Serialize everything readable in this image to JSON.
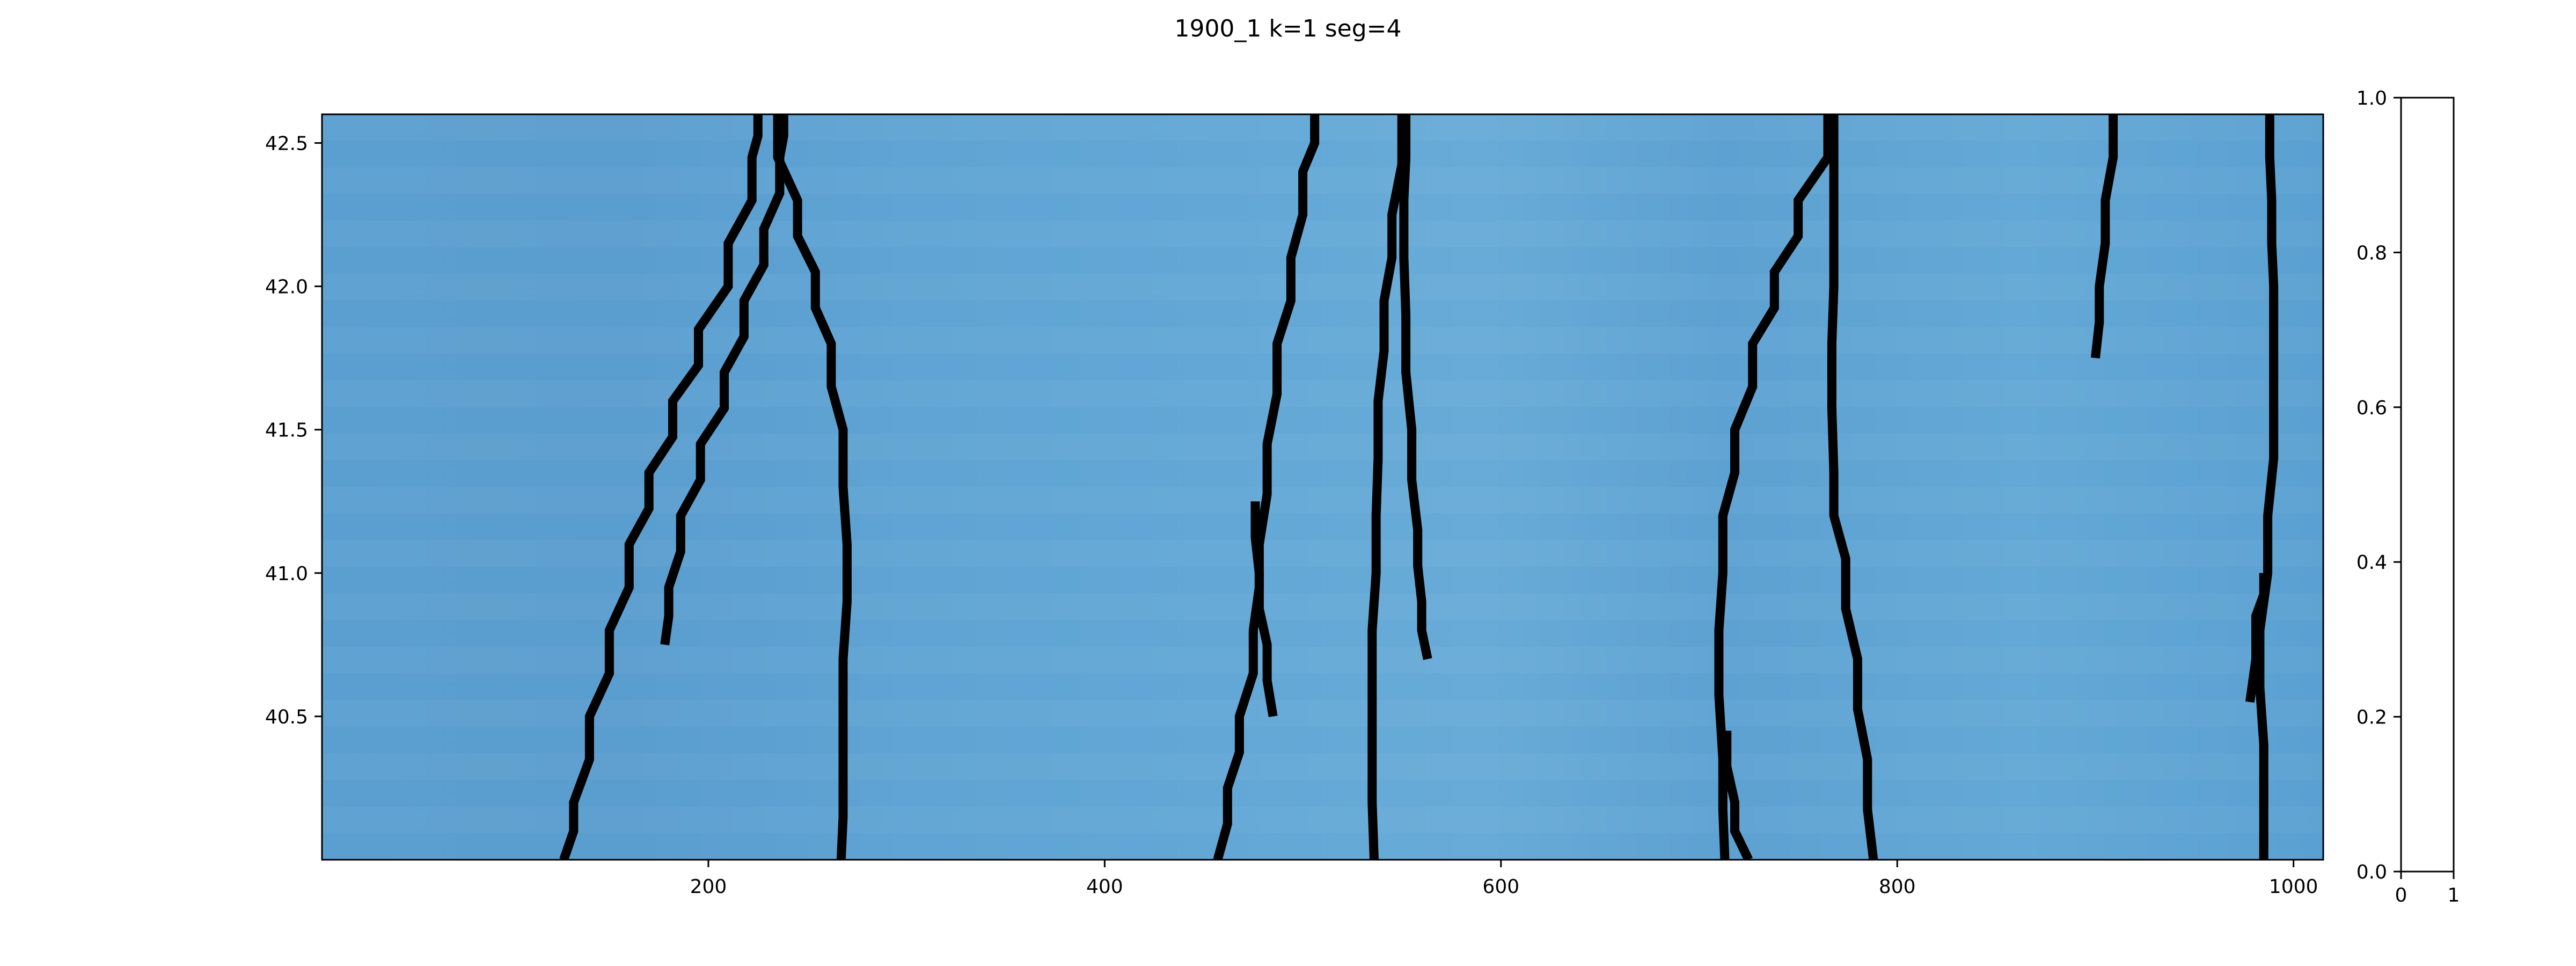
{
  "chart_data": [
    {
      "type": "heatmap",
      "title": "1900_1 k=1   seg=4",
      "xlim": [
        5,
        1015
      ],
      "ylim": [
        40.0,
        42.6
      ],
      "xticks": [
        200,
        400,
        600,
        800,
        1000
      ],
      "xtick_labels": [
        "200",
        "400",
        "600",
        "800",
        "1000"
      ],
      "yticks": [
        40.5,
        41.0,
        41.5,
        42.0,
        42.5
      ],
      "ytick_labels": [
        "40.5",
        "41.0",
        "41.5",
        "42.0",
        "42.5"
      ],
      "row_step": 0.0929,
      "background_colors": [
        "#5a9fd1",
        "#64a9d6",
        "#6daed9",
        "#559bd0"
      ],
      "ridge_color": "#000000",
      "ridges": [
        {
          "name": "ridge-1",
          "points": [
            [
              127,
              40.0
            ],
            [
              132,
              40.2
            ],
            [
              140,
              40.5
            ],
            [
              150,
              40.8
            ],
            [
              160,
              41.1
            ],
            [
              170,
              41.35
            ],
            [
              182,
              41.6
            ],
            [
              195,
              41.85
            ],
            [
              210,
              42.15
            ],
            [
              222,
              42.45
            ],
            [
              225,
              42.6
            ]
          ]
        },
        {
          "name": "ridge-2",
          "points": [
            [
              178,
              40.75
            ],
            [
              180,
              40.95
            ],
            [
              186,
              41.2
            ],
            [
              196,
              41.45
            ],
            [
              208,
              41.7
            ],
            [
              218,
              41.95
            ],
            [
              228,
              42.2
            ],
            [
              236,
              42.45
            ],
            [
              238,
              42.6
            ]
          ]
        },
        {
          "name": "ridge-3",
          "points": [
            [
              267,
              40.0
            ],
            [
              268,
              40.3
            ],
            [
              268,
              40.7
            ],
            [
              270,
              41.1
            ],
            [
              268,
              41.5
            ],
            [
              262,
              41.8
            ],
            [
              254,
              42.05
            ],
            [
              245,
              42.3
            ],
            [
              235,
              42.6
            ]
          ]
        },
        {
          "name": "ridge-4",
          "points": [
            [
              457,
              40.0
            ],
            [
              462,
              40.25
            ],
            [
              468,
              40.5
            ],
            [
              475,
              40.8
            ],
            [
              478,
              41.1
            ],
            [
              482,
              41.45
            ],
            [
              487,
              41.8
            ],
            [
              494,
              42.1
            ],
            [
              500,
              42.4
            ],
            [
              506,
              42.6
            ]
          ]
        },
        {
          "name": "ridge-5",
          "points": [
            [
              485,
              40.5
            ],
            [
              482,
              40.75
            ],
            [
              478,
              41.0
            ],
            [
              476,
              41.25
            ]
          ]
        },
        {
          "name": "ridge-6",
          "points": [
            [
              536,
              40.0
            ],
            [
              535,
              40.4
            ],
            [
              535,
              40.8
            ],
            [
              537,
              41.2
            ],
            [
              538,
              41.6
            ],
            [
              541,
              41.95
            ],
            [
              545,
              42.25
            ],
            [
              550,
              42.6
            ]
          ]
        },
        {
          "name": "ridge-7",
          "points": [
            [
              563,
              40.7
            ],
            [
              560,
              40.9
            ],
            [
              558,
              41.15
            ],
            [
              555,
              41.5
            ],
            [
              552,
              41.9
            ],
            [
              551,
              42.3
            ],
            [
              552,
              42.6
            ]
          ]
        },
        {
          "name": "ridge-8",
          "points": [
            [
              713,
              40.0
            ],
            [
              712,
              40.35
            ],
            [
              710,
              40.8
            ],
            [
              712,
              41.2
            ],
            [
              718,
              41.5
            ],
            [
              727,
              41.8
            ],
            [
              738,
              42.05
            ],
            [
              750,
              42.3
            ],
            [
              765,
              42.6
            ]
          ]
        },
        {
          "name": "ridge-9",
          "points": [
            [
              725,
              40.0
            ],
            [
              718,
              40.2
            ],
            [
              714,
              40.45
            ]
          ]
        },
        {
          "name": "ridge-10",
          "points": [
            [
              788,
              40.0
            ],
            [
              785,
              40.35
            ],
            [
              780,
              40.7
            ],
            [
              774,
              41.05
            ],
            [
              768,
              41.35
            ],
            [
              767,
              41.8
            ],
            [
              768,
              42.2
            ],
            [
              768,
              42.6
            ]
          ]
        },
        {
          "name": "ridge-11",
          "points": [
            [
              900,
              41.75
            ],
            [
              902,
              42.0
            ],
            [
              905,
              42.3
            ],
            [
              909,
              42.6
            ]
          ]
        },
        {
          "name": "ridge-12",
          "points": [
            [
              985,
              40.0
            ],
            [
              985,
              40.4
            ],
            [
              983,
              40.8
            ],
            [
              987,
              41.2
            ],
            [
              990,
              41.6
            ],
            [
              990,
              42.0
            ],
            [
              989,
              42.3
            ],
            [
              988,
              42.6
            ]
          ]
        },
        {
          "name": "ridge-13",
          "points": [
            [
              978,
              40.55
            ],
            [
              981,
              40.85
            ],
            [
              985,
              41.0
            ]
          ]
        }
      ]
    },
    {
      "type": "colorbar",
      "xlim": [
        0,
        1
      ],
      "ylim": [
        0.0,
        1.0
      ],
      "xticks": [
        0,
        1
      ],
      "xtick_labels": [
        "0",
        "1"
      ],
      "yticks": [
        0.0,
        0.2,
        0.4,
        0.6,
        0.8,
        1.0
      ],
      "ytick_labels": [
        "0.0",
        "0.2",
        "0.4",
        "0.6",
        "0.8",
        "1.0"
      ]
    }
  ]
}
